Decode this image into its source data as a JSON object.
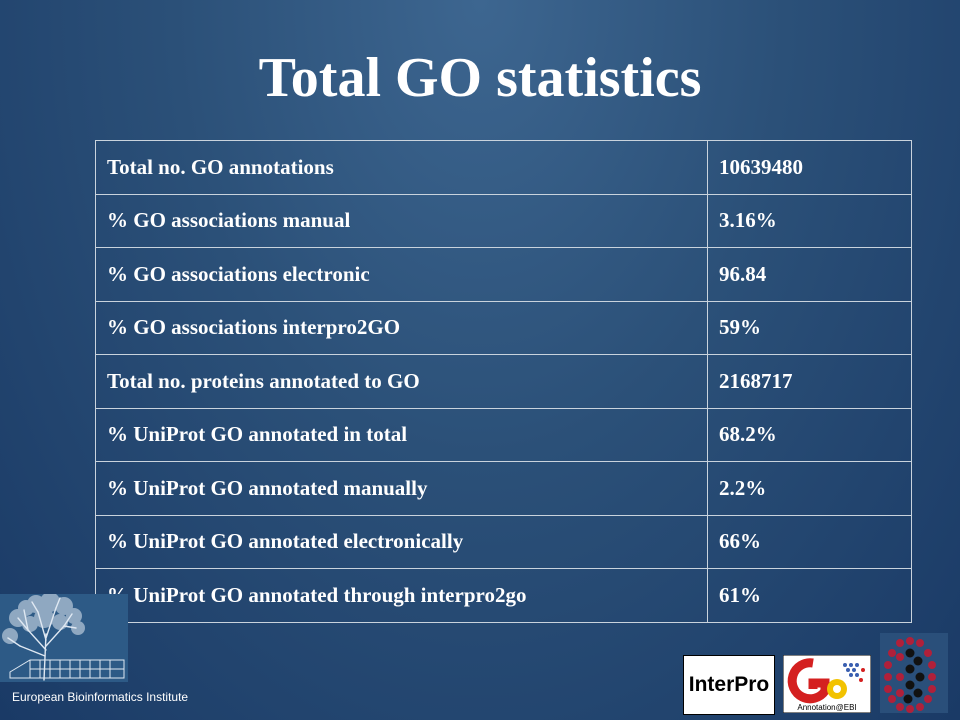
{
  "slide": {
    "title": "Total GO statistics",
    "footer": "European Bioinformatics Institute"
  },
  "table": {
    "rows": [
      {
        "label": "Total no. GO annotations",
        "value": "10639480"
      },
      {
        "label": "% GO associations manual",
        "value": "3.16%"
      },
      {
        "label": "% GO associations electronic",
        "value": "96.84"
      },
      {
        "label": "% GO associations interpro2GO",
        "value": "59%"
      },
      {
        "label": "Total no. proteins annotated to GO",
        "value": "2168717"
      },
      {
        "label": "% UniProt GO annotated in total",
        "value": "68.2%"
      },
      {
        "label": "% UniProt GO annotated manually",
        "value": "2.2%"
      },
      {
        "label": "% UniProt GO annotated electronically",
        "value": "66%"
      },
      {
        "label": "% UniProt GO annotated through interpro2go",
        "value": "61%"
      }
    ]
  },
  "logos": {
    "interpro": "InterPro",
    "go_caption": "Annotation@EBI",
    "ebi_icon": "tree-building-icon",
    "go_icon": "go-logo-icon",
    "hex_icon": "hexagon-dots-icon"
  },
  "colors": {
    "background_top": "#3d6690",
    "background_bottom": "#1a3a66",
    "table_border": "#c9d3dd",
    "go_red": "#d42020",
    "go_yellow": "#f2c200",
    "hex_dot_red": "#b0203a"
  }
}
